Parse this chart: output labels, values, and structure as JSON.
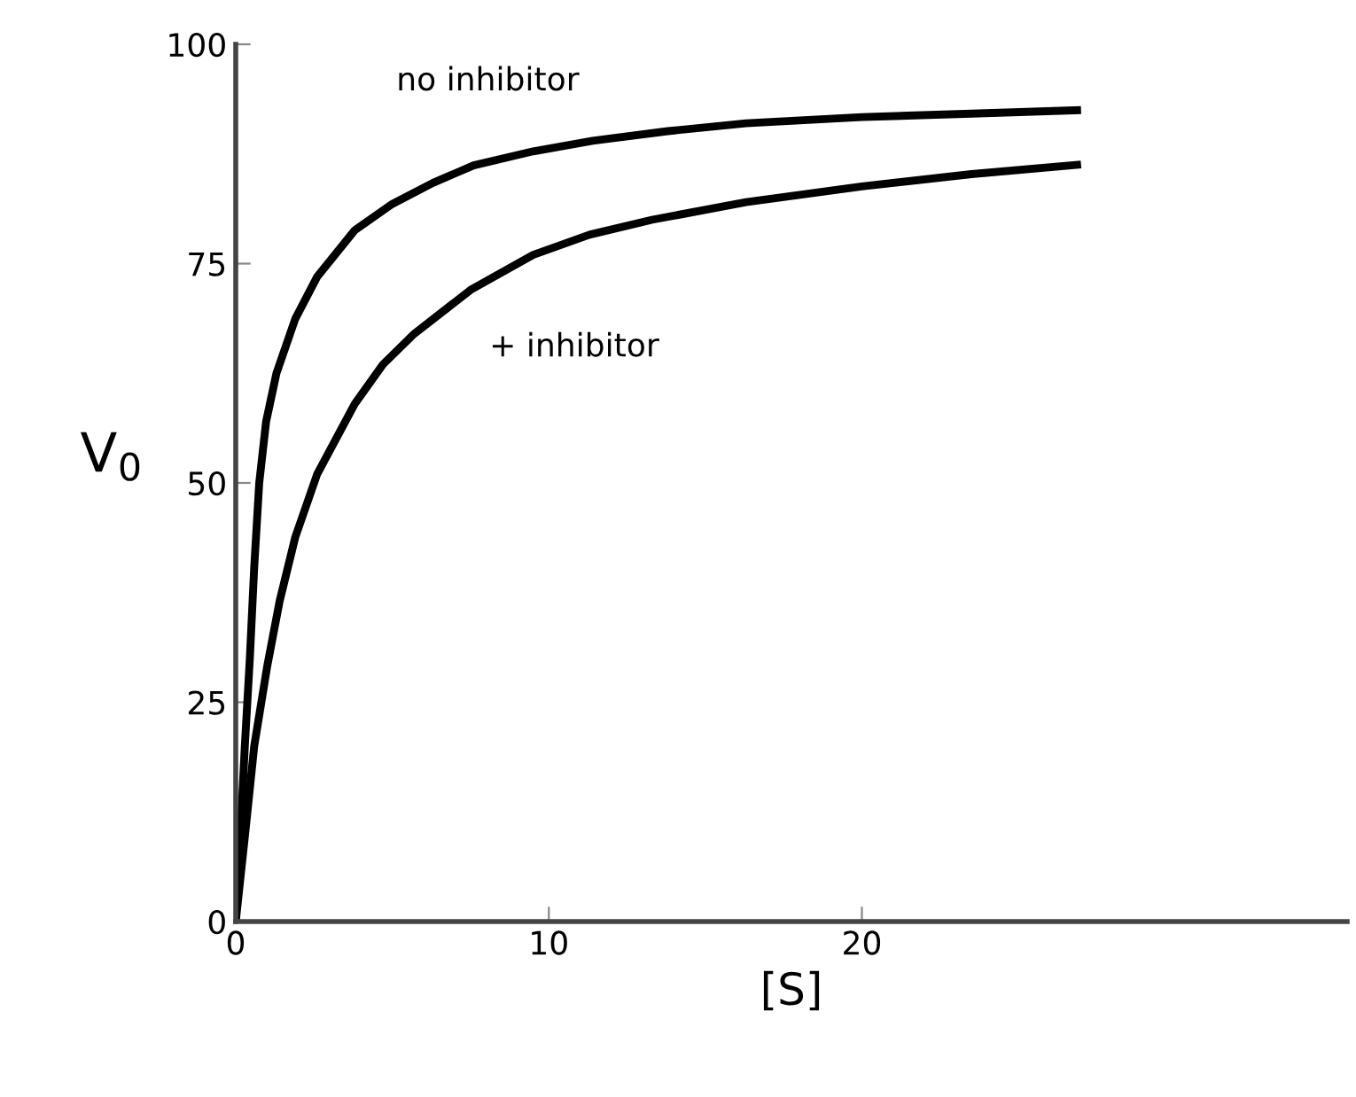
{
  "chart_data": {
    "type": "line",
    "xlabel": "[S]",
    "ylabel": "V$_{0}$",
    "xlim": [
      0,
      35.5
    ],
    "xticks": [
      0,
      10,
      20
    ],
    "ylim": [
      0,
      100
    ],
    "yticks": [
      0,
      25,
      50,
      75,
      100
    ],
    "grid": false,
    "legend": false,
    "marker": "none",
    "line_style": "solid",
    "series": [
      {
        "name": "no inhibitor",
        "color": "#000000",
        "x": [
          0,
          0.15,
          0.29,
          0.45,
          0.59,
          0.75,
          0.97,
          1.3,
          1.9,
          2.6,
          3.8,
          5,
          6.3,
          7.6,
          9.5,
          11.4,
          13.8,
          16.3,
          20,
          23.5,
          27
        ],
        "values": [
          0,
          10,
          20,
          30,
          40.4,
          50,
          57,
          62.5,
          68.7,
          73.5,
          78.8,
          81.8,
          84.2,
          86.2,
          87.8,
          89,
          90.1,
          91,
          91.7,
          92.1,
          92.5
        ]
      },
      {
        "name": "+ inhibitor",
        "color": "#000000",
        "x": [
          0,
          0.3,
          0.59,
          1,
          1.4,
          1.9,
          2.6,
          3.8,
          4.7,
          5.7,
          7.5,
          9.5,
          11.3,
          13.3,
          16.3,
          20,
          23.5,
          27
        ],
        "values": [
          0,
          10,
          20,
          29,
          36.5,
          43.8,
          51,
          59,
          63.5,
          67,
          72,
          76,
          78.3,
          80,
          82,
          83.8,
          85.2,
          86.3
        ]
      }
    ]
  }
}
